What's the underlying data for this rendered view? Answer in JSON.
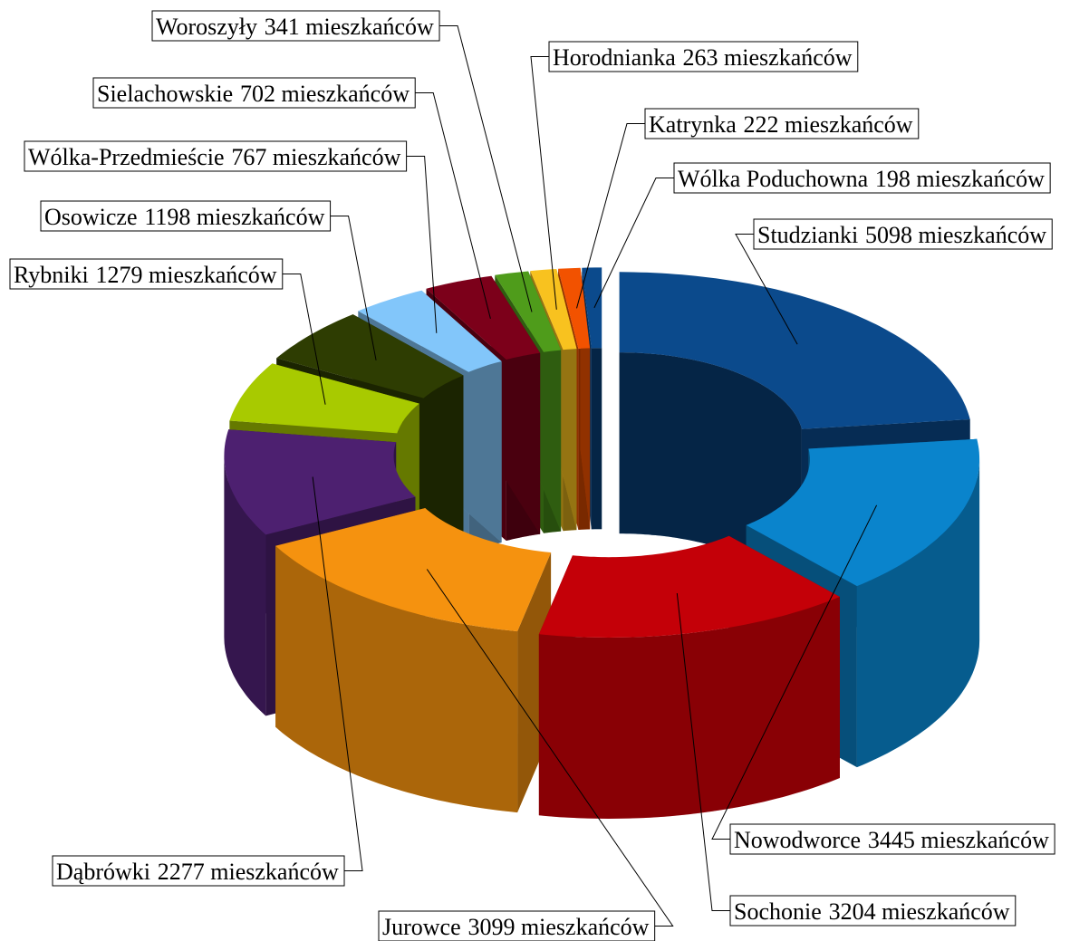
{
  "chart_data": {
    "type": "donut3d",
    "categories": [
      "Studzianki",
      "Nowodworce",
      "Sochonie",
      "Jurowce",
      "Dąbrówki",
      "Rybniki",
      "Osowicze",
      "Wólka-Przedmieście",
      "Sielachowskie",
      "Woroszyły",
      "Horodnianka",
      "Katrynka",
      "Wólka Poduchowna"
    ],
    "values": [
      5098,
      3445,
      3204,
      3099,
      2277,
      1279,
      1198,
      767,
      702,
      341,
      263,
      222,
      198
    ],
    "value_labels": [
      "5098 mieszkańców",
      "3445 mieszkańców",
      "3204 mieszkańców",
      "3099 mieszkańców",
      "2277 mieszkańców",
      "1279 mieszkańców",
      "1198 mieszkańców",
      "767 mieszkańców",
      "702 mieszkańców",
      "341 mieszkańców",
      "263 mieszkańców",
      "222 mieszkańców",
      "198 mieszkańców"
    ],
    "colors": [
      "#0b4a8c",
      "#0a84cc",
      "#c40008",
      "#f5920f",
      "#4d2070",
      "#a8ca00",
      "#2e3d02",
      "#82c6fa",
      "#7c001a",
      "#4f9c1b",
      "#f8c21f",
      "#f25200",
      "#0b4a8c"
    ]
  }
}
